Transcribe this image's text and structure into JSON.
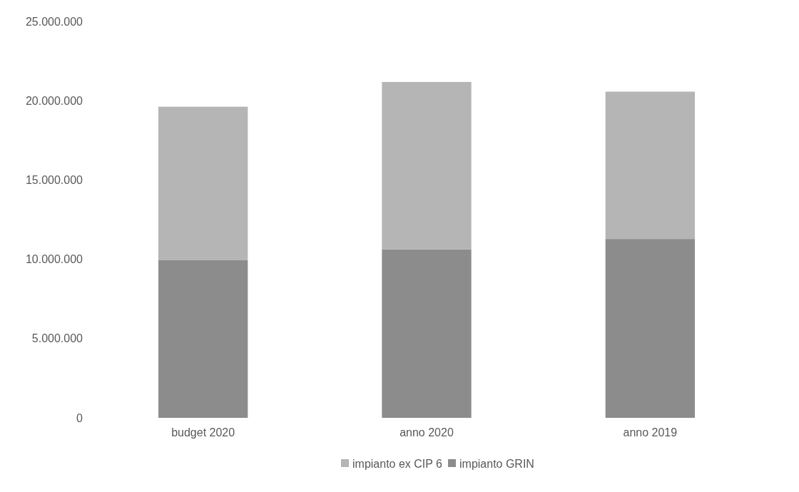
{
  "chart_data": {
    "type": "bar",
    "stacked": true,
    "categories": [
      "budget 2020",
      "anno 2020",
      "anno 2019"
    ],
    "series": [
      {
        "name": "impianto GRIN",
        "color": "#8c8c8c",
        "values": [
          9940000,
          10630000,
          11280000
        ]
      },
      {
        "name": "impianto ex CIP 6",
        "color": "#b5b5b5",
        "values": [
          9680000,
          10550000,
          9290000
        ]
      }
    ],
    "ylim": [
      0,
      25000000
    ],
    "yticks": [
      0,
      {
        "value": 5000000,
        "label": "5.000.000"
      },
      {
        "value": 10000000,
        "label": "10.000.000"
      },
      {
        "value": 15000000,
        "label": "15.000.000"
      },
      {
        "value": 20000000,
        "label": "20.000.000"
      },
      {
        "value": 25000000,
        "label": "25.000.000"
      }
    ],
    "grid": false,
    "legend": "bottom"
  }
}
